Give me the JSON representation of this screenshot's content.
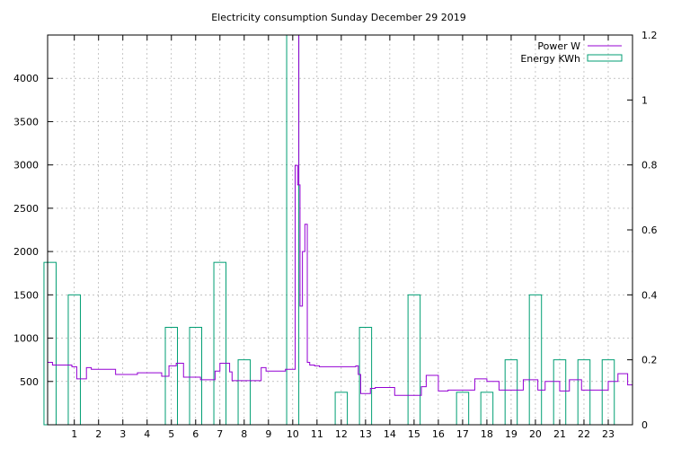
{
  "chart_data": {
    "type": "line",
    "title": "Electricity consumption Sunday December 29 2019",
    "xlabel": "",
    "ylabel": "",
    "y2label": "",
    "grid": true,
    "legend_position": "top-right",
    "x_range": [
      -0.1,
      24
    ],
    "x_ticks": [
      1,
      2,
      3,
      4,
      5,
      6,
      7,
      8,
      9,
      10,
      11,
      12,
      13,
      14,
      15,
      16,
      17,
      18,
      19,
      20,
      21,
      22,
      23
    ],
    "y_range": [
      0,
      4500
    ],
    "y_ticks": [
      500,
      1000,
      1500,
      2000,
      2500,
      3000,
      3500,
      4000
    ],
    "y2_range": [
      0,
      1.2
    ],
    "y2_ticks": [
      0,
      0.2,
      0.4,
      0.6,
      0.8,
      1,
      1.2
    ],
    "series": [
      {
        "name": "Power W",
        "color": "#9400d3",
        "axis": "y",
        "style": "steps",
        "x": [
          -0.1,
          0.1,
          0.9,
          1.1,
          1.5,
          1.7,
          2.7,
          3.6,
          4.6,
          4.9,
          5.2,
          5.5,
          6.1,
          6.2,
          6.8,
          7.0,
          7.4,
          7.5,
          8.7,
          8.9,
          9.7,
          10.1,
          10.2,
          10.3,
          10.4,
          10.5,
          10.6,
          10.7,
          10.9,
          11.1,
          12.6,
          12.7,
          12.8,
          13.2,
          13.4,
          14.0,
          14.2,
          15.0,
          15.3,
          15.5,
          16.0,
          16.4,
          16.9,
          17.5,
          18.0,
          18.5,
          18.9,
          19.5,
          20.1,
          20.4,
          21.0,
          21.4,
          21.9,
          23.0,
          23.4,
          23.8
        ],
        "y": [
          720,
          690,
          670,
          530,
          660,
          640,
          580,
          600,
          560,
          680,
          710,
          550,
          550,
          520,
          620,
          710,
          610,
          510,
          660,
          620,
          640,
          2995,
          2770,
          1370,
          2000,
          2315,
          720,
          690,
          680,
          670,
          680,
          580,
          360,
          420,
          430,
          430,
          340,
          340,
          440,
          570,
          390,
          400,
          400,
          530,
          500,
          400,
          400,
          520,
          400,
          500,
          390,
          520,
          400,
          500,
          590,
          460
        ]
      },
      {
        "name": "Energy KWh",
        "color": "#009e73",
        "axis": "y2",
        "style": "boxes",
        "x": [
          0,
          1,
          2,
          3,
          4,
          5,
          6,
          7,
          8,
          9,
          10,
          11,
          12,
          13,
          14,
          15,
          16,
          17,
          18,
          19,
          20,
          21,
          22,
          23
        ],
        "y": [
          0.5,
          0.4,
          0,
          0,
          0,
          0.3,
          0.3,
          0.5,
          0.2,
          0,
          1.2,
          0,
          0.1,
          0.3,
          0,
          0.4,
          0,
          0.1,
          0.1,
          0.2,
          0.4,
          0.2,
          0.2,
          0.2
        ]
      }
    ]
  }
}
